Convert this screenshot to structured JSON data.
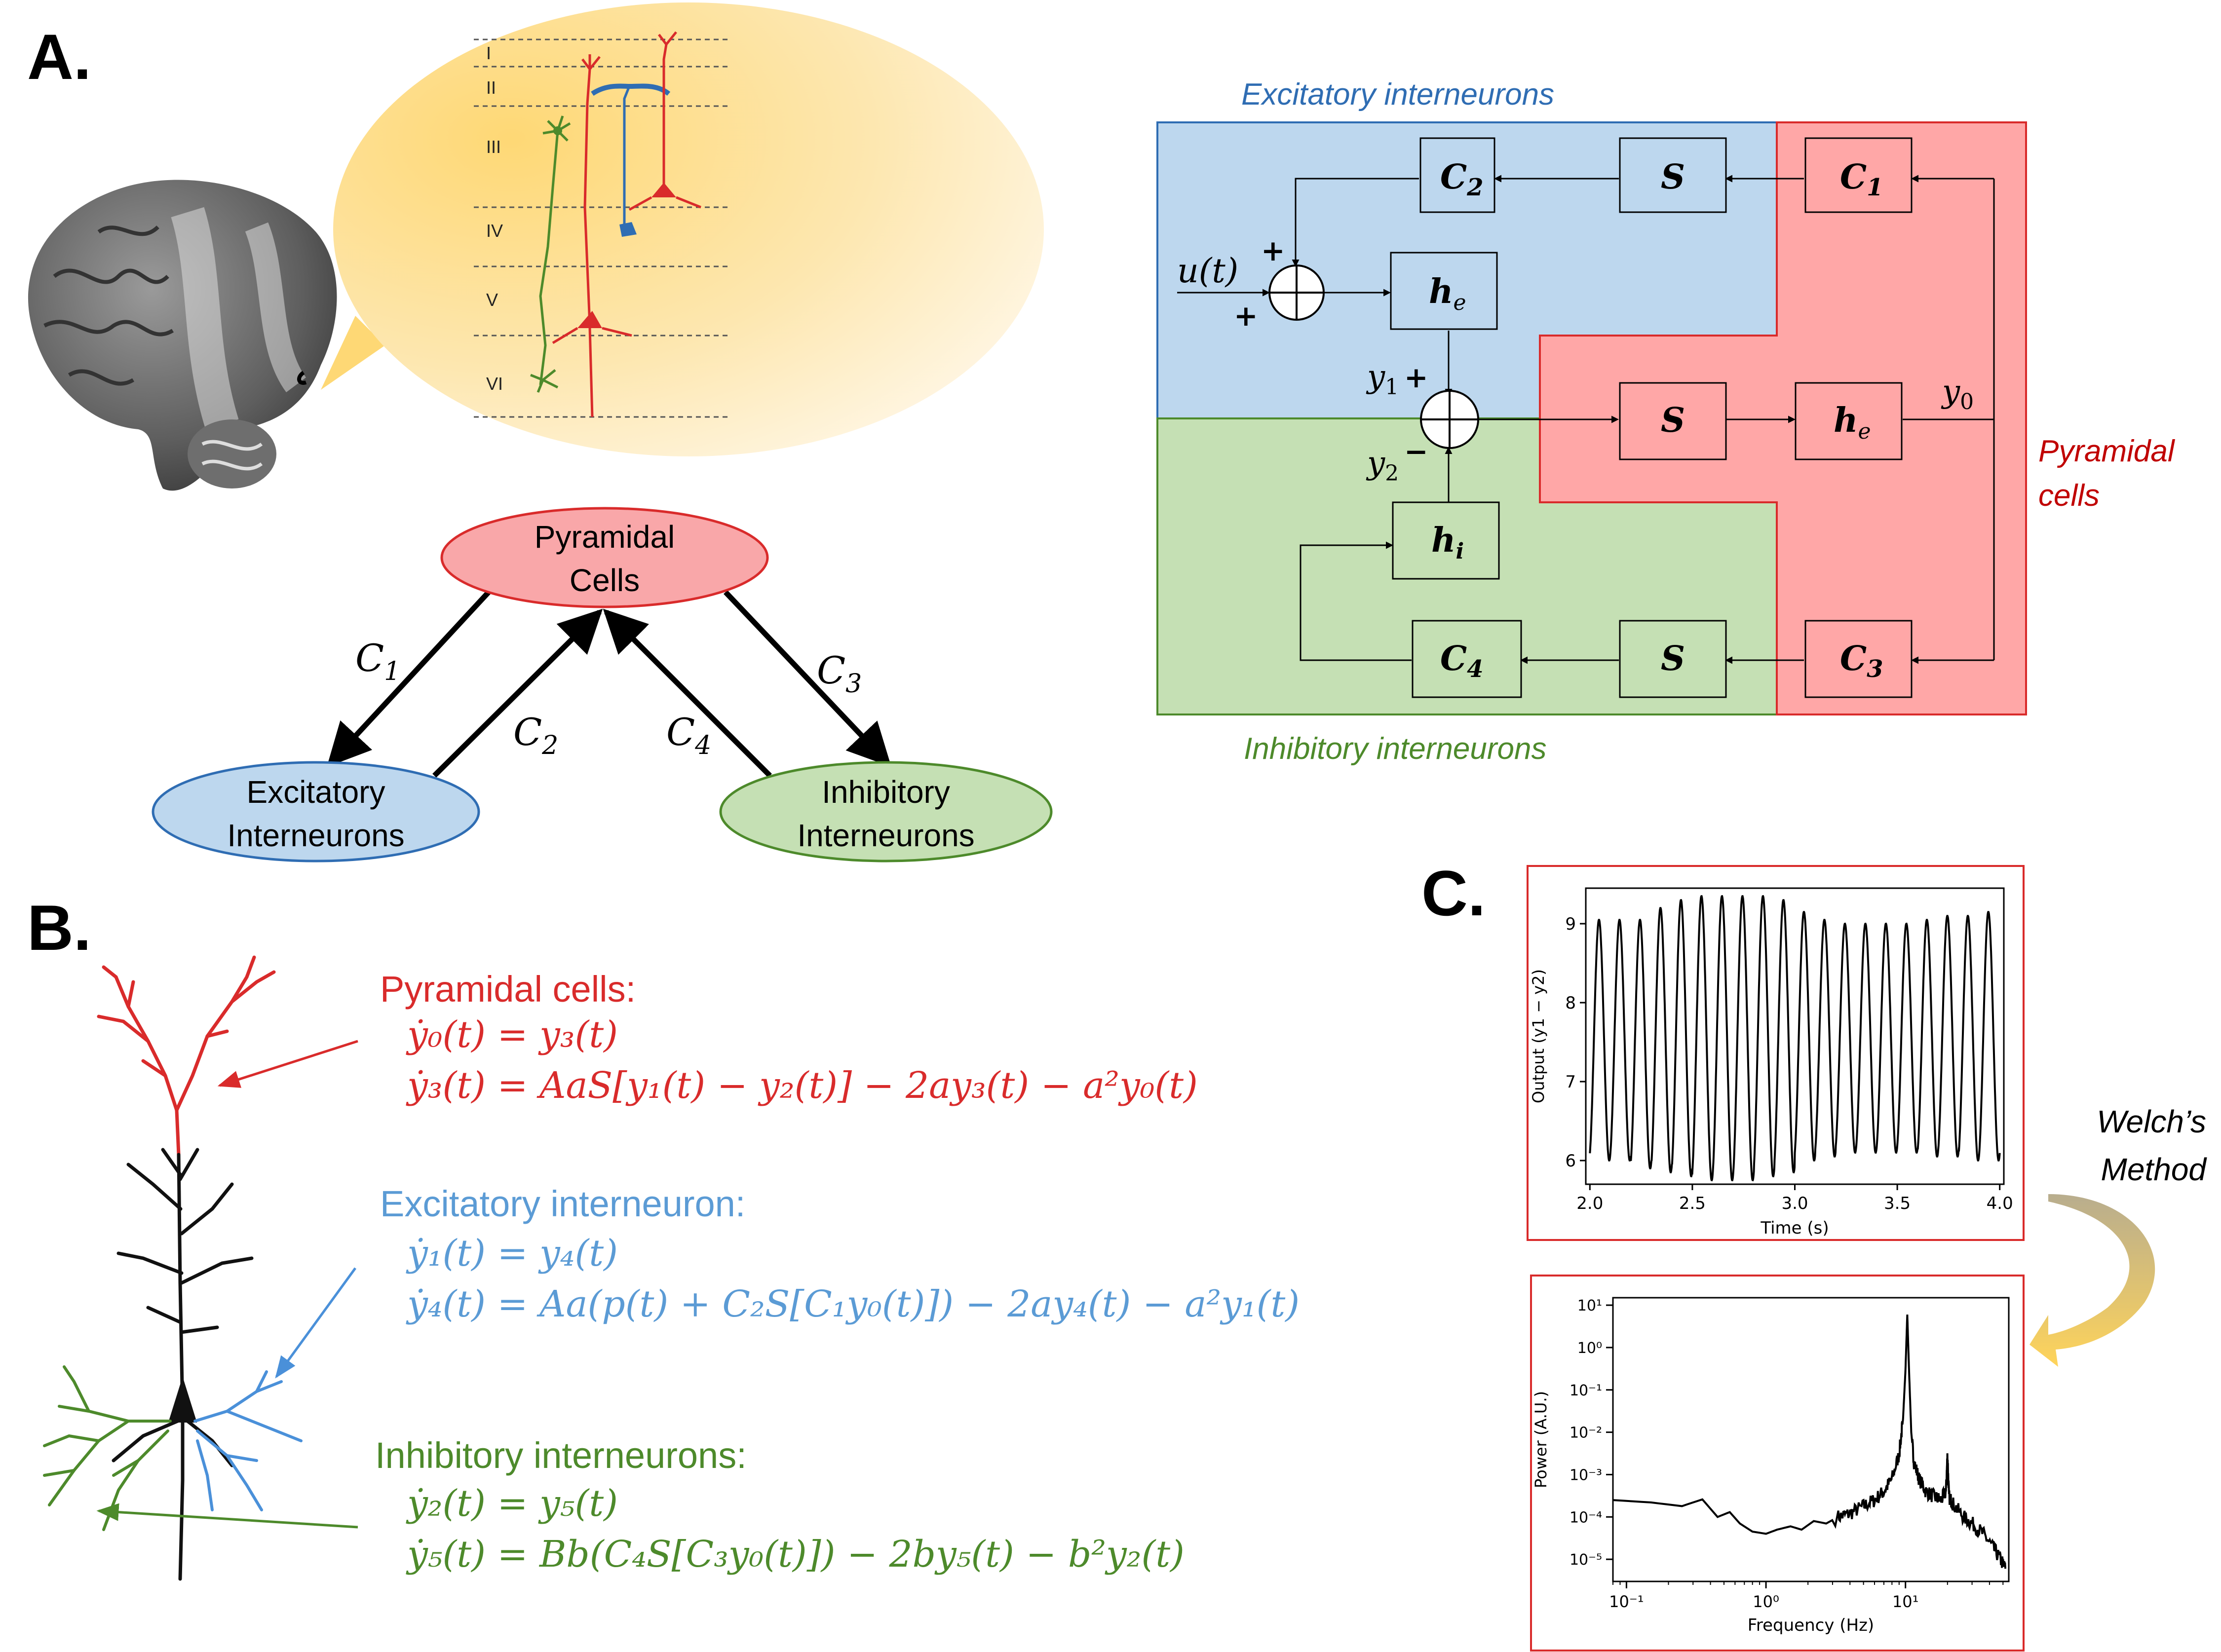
{
  "panels": {
    "a": "A.",
    "b": "B.",
    "c": "C."
  },
  "cortex": {
    "layers": [
      "I",
      "II",
      "III",
      "IV",
      "V",
      "VI"
    ]
  },
  "triangle": {
    "pyramidal": [
      "Pyramidal",
      "Cells"
    ],
    "excitatory": [
      "Excitatory",
      "Interneurons"
    ],
    "inhibitory": [
      "Inhibitory",
      "Interneurons"
    ],
    "c1": "C",
    "c1_sub": "1",
    "c2": "C",
    "c2_sub": "2",
    "c3": "C",
    "c3_sub": "3",
    "c4": "C",
    "c4_sub": "4"
  },
  "block": {
    "excitatory_title": "Excitatory interneurons",
    "inhibitory_title": "Inhibitory interneurons",
    "pyramidal_title": [
      "Pyramidal",
      "cells"
    ],
    "c1": "C",
    "c1_sub": "1",
    "c2": "C",
    "c2_sub": "2",
    "c3": "C",
    "c3_sub": "3",
    "c4": "C",
    "c4_sub": "4",
    "s": "S",
    "h": "h",
    "he_sub": "e",
    "hi_sub": "i",
    "input": "u(t)",
    "plus": "+",
    "minus": "−",
    "y": "y",
    "y1_sub": "1",
    "y2_sub": "2",
    "y0_sub": "0"
  },
  "equations": {
    "pyramidal": {
      "title": "Pyramidal cells:",
      "eq1": "ẏ₀(t) = y₃(t)",
      "eq2": "ẏ₃(t) = AaS[y₁(t) − y₂(t)] − 2ay₃(t) − a²y₀(t)"
    },
    "excitatory": {
      "title": "Excitatory interneuron:",
      "eq1": "ẏ₁(t) = y₄(t)",
      "eq2": "ẏ₄(t) = Aa(p(t) + C₂S[C₁y₀(t)]) − 2ay₄(t) − a²y₁(t)"
    },
    "inhibitory": {
      "title": "Inhibitory interneurons:",
      "eq1": "ẏ₂(t) = y₅(t)",
      "eq2": "ẏ₅(t) = Bb(C₄S[C₃y₀(t)]) − 2by₅(t) − b²y₂(t)"
    }
  },
  "welch": [
    "Welch’s",
    "Method"
  ],
  "colors": {
    "pyramidal": "#d92b2b",
    "excitatory": "#4a90d9",
    "inhibitory": "#4d8a2b",
    "pyr_fill": "#ffa7a7",
    "exc_fill": "#bdd7ee",
    "inh_fill": "#c5e0b4"
  },
  "chart_data": [
    {
      "type": "line",
      "title": "",
      "xlabel": "Time (s)",
      "ylabel": "Output (y1 − y2)",
      "xlim": [
        1.98,
        4.02
      ],
      "ylim": [
        5.7,
        9.45
      ],
      "xticks": [
        "2.0",
        "2.5",
        "3.0",
        "3.5",
        "4.0"
      ],
      "yticks": [
        "6",
        "7",
        "8",
        "9"
      ],
      "series": [
        {
          "x": [
            2.0,
            2.05,
            2.1,
            2.15,
            2.2,
            2.25,
            2.3,
            2.35,
            2.4,
            2.45,
            2.5,
            2.55,
            2.6,
            2.65,
            2.7,
            2.75,
            2.8,
            2.85,
            2.9,
            2.95,
            3.0,
            3.05,
            3.1,
            3.15,
            3.2,
            3.25,
            3.3,
            3.35,
            3.4,
            3.45,
            3.5,
            3.55,
            3.6,
            3.65,
            3.7,
            3.75,
            3.8,
            3.85,
            3.9,
            3.95,
            4.0
          ],
          "peaks": [
            9.05,
            9.05,
            9.05,
            9.2,
            9.3,
            9.35,
            9.35,
            9.35,
            9.35,
            9.3,
            9.15,
            9.05,
            9.0,
            9.0,
            9.0,
            9.0,
            9.05,
            9.1,
            9.1,
            9.15
          ],
          "troughs": [
            6.0,
            6.0,
            5.9,
            5.85,
            5.8,
            5.75,
            5.75,
            5.75,
            5.8,
            5.85,
            6.0,
            6.05,
            6.1,
            6.1,
            6.1,
            6.1,
            6.05,
            6.05,
            6.0,
            6.0
          ]
        }
      ],
      "frequency_hz": 10
    },
    {
      "type": "line",
      "title": "",
      "xlabel": "Frequency (Hz)",
      "ylabel": "Power (A.U.)",
      "xscale": "log",
      "yscale": "log",
      "xlim": [
        0.08,
        55
      ],
      "ylim": [
        3e-06,
        15
      ],
      "xticks": [
        "10⁻¹",
        "10⁰",
        "10¹"
      ],
      "yticks": [
        "10⁻⁵",
        "10⁻⁴",
        "10⁻³",
        "10⁻²",
        "10⁻¹",
        "10⁰",
        "10¹"
      ],
      "series": [
        {
          "x": [
            0.08,
            0.15,
            0.25,
            0.35,
            0.45,
            0.55,
            0.65,
            0.8,
            1.0,
            1.2,
            1.5,
            1.8,
            2.2,
            2.7,
            3.3,
            4.0,
            5.0,
            6.0,
            7.0,
            8.0,
            9.0,
            9.6,
            10.0,
            10.3,
            10.6,
            11.0,
            11.5,
            12.5,
            14.0,
            16.0,
            18.0,
            19.5,
            20.0,
            20.5,
            22.0,
            26.0,
            30.0,
            36.0,
            42.0,
            48.0,
            52.0
          ],
          "y": [
            0.00025,
            0.00022,
            0.00018,
            0.00026,
            0.0001,
            0.00013,
            7e-05,
            4.5e-05,
            4e-05,
            5e-05,
            6e-05,
            5e-05,
            8e-05,
            7e-05,
            0.0001,
            0.00012,
            0.00018,
            0.00025,
            0.0004,
            0.0008,
            0.003,
            0.02,
            0.3,
            6.0,
            0.3,
            0.01,
            0.002,
            0.0008,
            0.0004,
            0.0003,
            0.00025,
            0.0004,
            0.003,
            0.0003,
            0.0002,
            0.0001,
            7e-05,
            4e-05,
            2e-05,
            1e-05,
            6e-06
          ]
        }
      ]
    }
  ]
}
